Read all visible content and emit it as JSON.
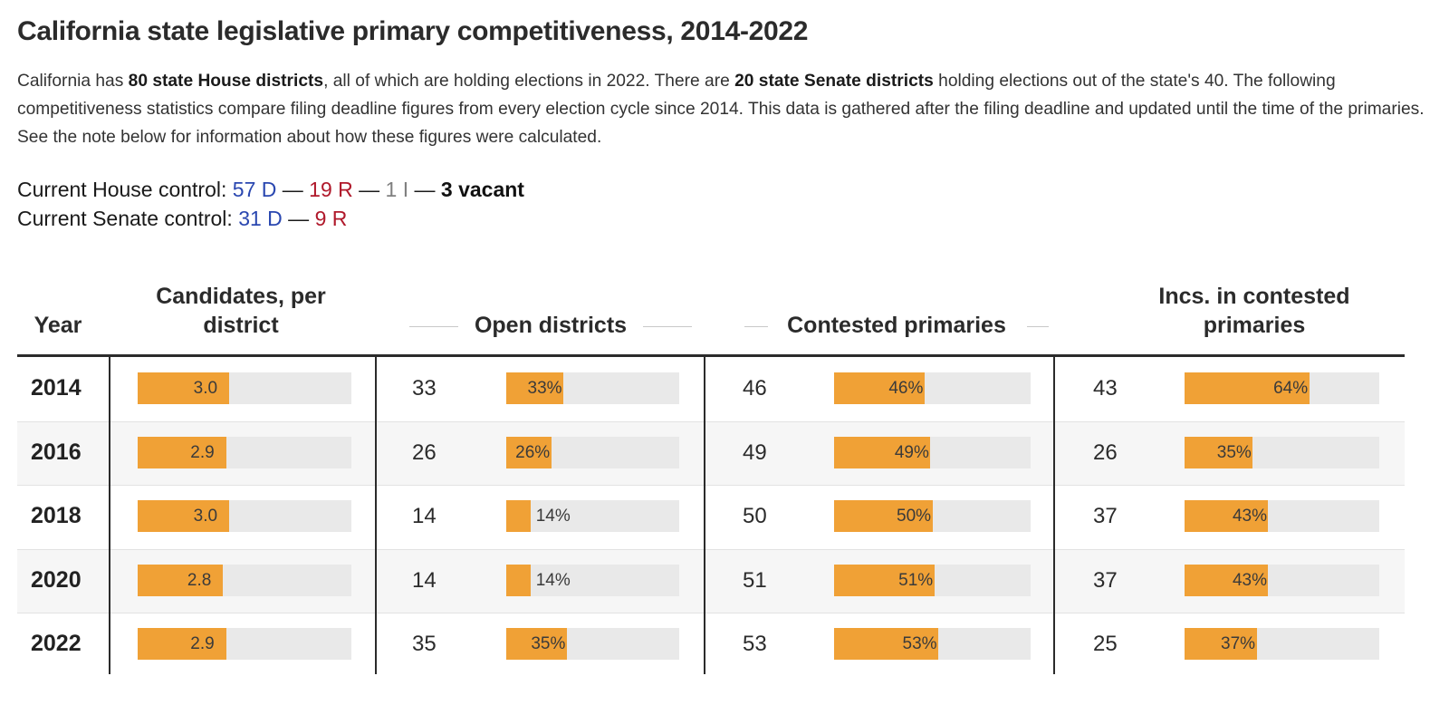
{
  "title": "California state legislative primary competitiveness, 2014-2022",
  "intro": {
    "p1": "California has ",
    "b1": "80 state House districts",
    "p2": ", all of which are holding elections in 2022. There are ",
    "b2": "20 state Senate districts",
    "p3": " holding elections out of the state's 40. The following competitiveness statistics compare filing deadline figures from every election cycle since 2014. This data is gathered after the filing deadline and updated until the time of the primaries. See the note below for information about how these figures were calculated."
  },
  "house_control": {
    "label": "Current House control: ",
    "dem": "57 D",
    "rep": "19 R",
    "ind": "1 I",
    "vacant": "3 vacant",
    "sep": " — "
  },
  "senate_control": {
    "label": "Current Senate control: ",
    "dem": "31 D",
    "rep": "9 R",
    "sep": " — "
  },
  "colors": {
    "bar": "#f0a136",
    "track": "#e9e9e9",
    "dem": "#2a47b0",
    "rep": "#b0192b"
  },
  "chart_data": {
    "type": "table",
    "title": "California state legislative primary competitiveness, 2014-2022",
    "columns": [
      "Year",
      "Candidates, per district",
      "Open districts",
      "Contested primaries",
      "Incs. in contested primaries"
    ],
    "candidates_max": 7,
    "rows": [
      {
        "year": "2014",
        "candidates": 3.0,
        "candidates_label": "3.0",
        "open": "33",
        "open_pct": 33,
        "contested": "46",
        "contested_pct": 46,
        "incs": "43",
        "incs_pct": 64
      },
      {
        "year": "2016",
        "candidates": 2.9,
        "candidates_label": "2.9",
        "open": "26",
        "open_pct": 26,
        "contested": "49",
        "contested_pct": 49,
        "incs": "26",
        "incs_pct": 35
      },
      {
        "year": "2018",
        "candidates": 3.0,
        "candidates_label": "3.0",
        "open": "14",
        "open_pct": 14,
        "contested": "50",
        "contested_pct": 50,
        "incs": "37",
        "incs_pct": 43
      },
      {
        "year": "2020",
        "candidates": 2.8,
        "candidates_label": "2.8",
        "open": "14",
        "open_pct": 14,
        "contested": "51",
        "contested_pct": 51,
        "incs": "37",
        "incs_pct": 43
      },
      {
        "year": "2022",
        "candidates": 2.9,
        "candidates_label": "2.9",
        "open": "35",
        "open_pct": 35,
        "contested": "53",
        "contested_pct": 53,
        "incs": "25",
        "incs_pct": 37
      }
    ]
  }
}
